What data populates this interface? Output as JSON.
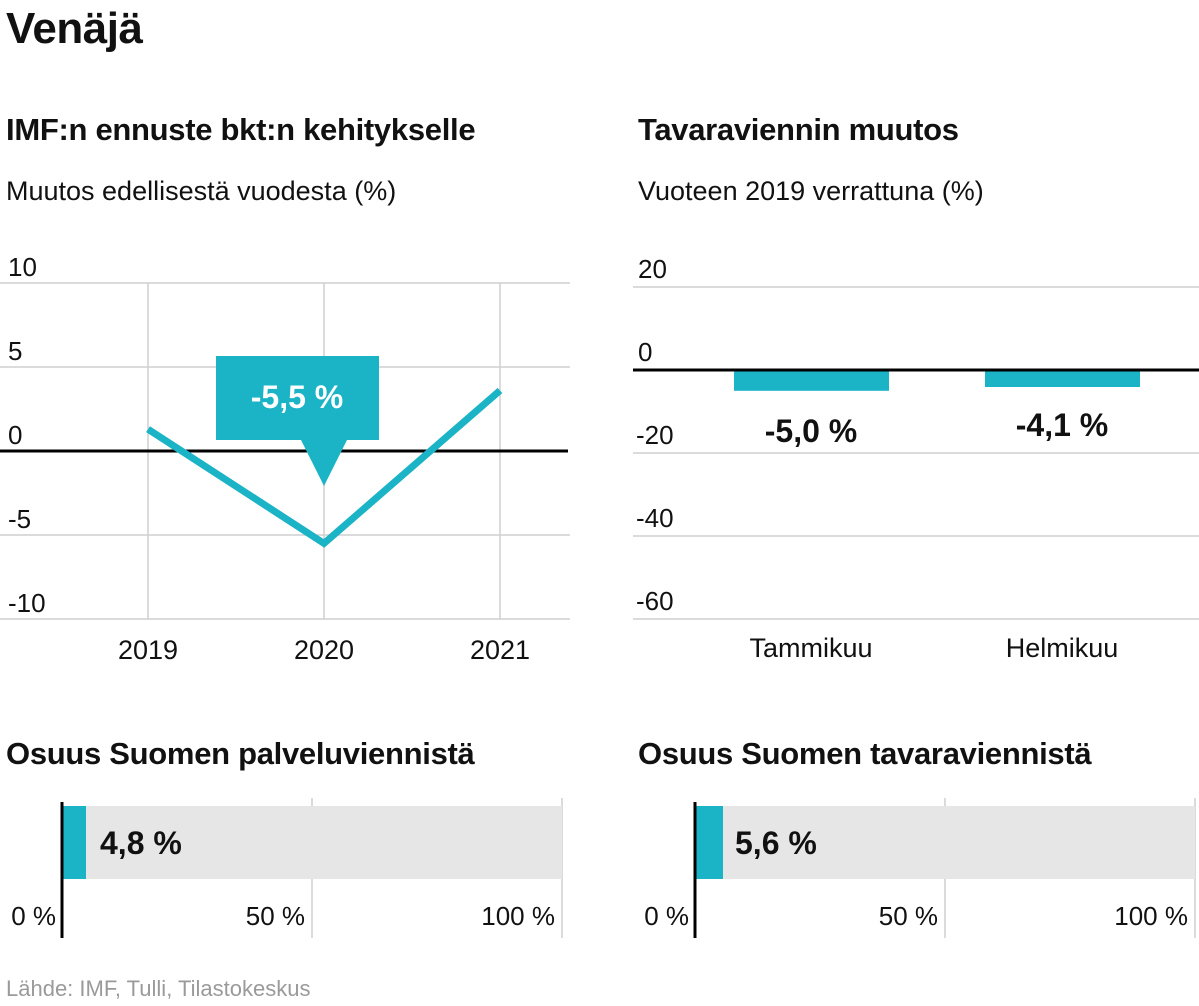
{
  "title": "Venäjä",
  "source": "Lähde: IMF, Tulli, Tilastokeskus",
  "colors": {
    "accent": "#1bb3c6",
    "bar_bg": "#e6e6e6",
    "grid": "#cfcfcf",
    "axis": "#000000",
    "text": "#111111"
  },
  "chart_data": [
    {
      "id": "gdp",
      "type": "line",
      "title": "IMF:n ennuste bkt:n kehitykselle",
      "subtitle": "Muutos edellisestä vuodesta (%)",
      "x": [
        "2019",
        "2020",
        "2021"
      ],
      "values": [
        1.3,
        -5.5,
        3.6
      ],
      "yticks": [
        "10",
        "5",
        "0",
        "-5",
        "-10"
      ],
      "ylim": [
        -10,
        10
      ],
      "callout": {
        "label": "-5,5 %",
        "category": "2020"
      }
    },
    {
      "id": "exports",
      "type": "bar",
      "title": "Tavaraviennin muutos",
      "subtitle": "Vuoteen 2019 verrattuna (%)",
      "categories": [
        "Tammikuu",
        "Helmikuu"
      ],
      "values": [
        -5.0,
        -4.1
      ],
      "labels": [
        "-5,0 %",
        "-4,1 %"
      ],
      "yticks": [
        "20",
        "0",
        "-20",
        "-40",
        "-60"
      ],
      "ylim": [
        -60,
        20
      ]
    },
    {
      "id": "services_share",
      "type": "bar",
      "orientation": "horizontal",
      "title": "Osuus Suomen palveluviennistä",
      "value": 4.8,
      "label": "4,8 %",
      "ticks": [
        "0 %",
        "50 %",
        "100 %"
      ],
      "xlim": [
        0,
        100
      ]
    },
    {
      "id": "goods_share",
      "type": "bar",
      "orientation": "horizontal",
      "title": "Osuus Suomen tavaraviennistä",
      "value": 5.6,
      "label": "5,6 %",
      "ticks": [
        "0 %",
        "50 %",
        "100 %"
      ],
      "xlim": [
        0,
        100
      ]
    }
  ]
}
